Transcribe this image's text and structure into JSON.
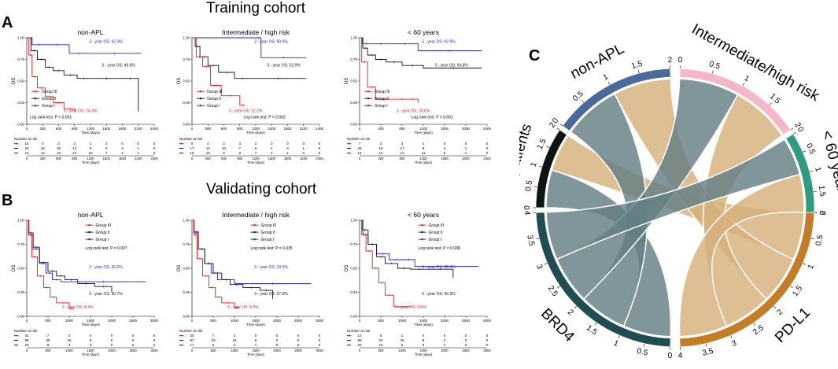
{
  "figure": {
    "cohorts": [
      "Training cohort",
      "Validating cohort"
    ],
    "panel_labels": [
      "A",
      "B",
      "C"
    ]
  },
  "chart_data": [
    {
      "type": "line",
      "id": "train-nonapl",
      "title": "non-APL",
      "xlabel": "Time (days)",
      "ylabel": "OS",
      "xlim": [
        0,
        2400
      ],
      "ylim": [
        0,
        1
      ],
      "xticks": [
        0,
        300,
        600,
        900,
        1200,
        1500,
        1800,
        2100,
        2400
      ],
      "yticks": [
        "0.00",
        "0.25",
        "0.50",
        "0.75",
        "1.00"
      ],
      "legend": [
        "Group III",
        "Group II",
        "Group I"
      ],
      "logrank": "Log rank test: P < 0.001",
      "series": [
        {
          "name": "Group I",
          "color": "#1e1ee6",
          "x": [
            0,
            100,
            350,
            800,
            1150,
            2150
          ],
          "y": [
            1,
            0.92,
            0.92,
            0.82,
            0.82,
            0.82
          ],
          "label": "3 - year OS: 92.3%"
        },
        {
          "name": "Group II",
          "color": "#111111",
          "x": [
            0,
            80,
            200,
            350,
            500,
            700,
            950,
            1200,
            1800,
            2100
          ],
          "y": [
            1,
            0.85,
            0.75,
            0.66,
            0.62,
            0.57,
            0.53,
            0.53,
            0.53,
            0.15
          ],
          "label": "3 - year OS: 49.8%"
        },
        {
          "name": "Group III",
          "color": "#e6191f",
          "x": [
            0,
            40,
            100,
            200,
            350,
            500,
            700,
            900
          ],
          "y": [
            1,
            0.8,
            0.55,
            0.42,
            0.32,
            0.25,
            0.18,
            0.15
          ],
          "label": "3 - year OS: 14.3%"
        }
      ],
      "risk": {
        "header": "Number at risk",
        "rows": [
          [
            "14",
            "4",
            "3",
            "3",
            "1",
            "0",
            "0",
            "0",
            "0"
          ],
          [
            "25",
            "18",
            "15",
            "12",
            "9",
            "6",
            "4",
            "1",
            "0"
          ],
          [
            "13",
            "13",
            "12",
            "12",
            "10",
            "7",
            "2",
            "1",
            "0"
          ]
        ]
      }
    },
    {
      "type": "line",
      "id": "train-int",
      "title": "Intermediate / high risk",
      "xlabel": "Time (days)",
      "ylabel": "OS",
      "xlim": [
        0,
        2400
      ],
      "ylim": [
        0,
        1
      ],
      "xticks": [
        0,
        300,
        600,
        900,
        1200,
        1500,
        1800,
        2100,
        2400
      ],
      "yticks": [
        "0.00",
        "0.25",
        "0.50",
        "0.75",
        "1.00"
      ],
      "legend": [
        "Group III",
        "Group II",
        "Group I"
      ],
      "logrank": "Log rank test: P = 0.002",
      "series": [
        {
          "name": "Group I",
          "color": "#1e1ee6",
          "x": [
            0,
            1200,
            1300,
            2150
          ],
          "y": [
            1,
            1,
            0.77,
            0.77
          ],
          "label": "3 - year OS: 90.0%"
        },
        {
          "name": "Group II",
          "color": "#111111",
          "x": [
            0,
            60,
            150,
            300,
            500,
            800,
            1100,
            2150
          ],
          "y": [
            1,
            0.9,
            0.78,
            0.68,
            0.6,
            0.53,
            0.53,
            0.53
          ],
          "label": "3 - year OS: 52.9%"
        },
        {
          "name": "Group III",
          "color": "#e6191f",
          "x": [
            0,
            80,
            200,
            350,
            550,
            900,
            1000
          ],
          "y": [
            1,
            0.78,
            0.67,
            0.45,
            0.33,
            0.22,
            0.22
          ],
          "label": "3 - year OS: 22.2%"
        }
      ],
      "risk": {
        "header": "Number at risk",
        "rows": [
          [
            "9",
            "4",
            "3",
            "3",
            "1",
            "0",
            "0",
            "0",
            "0"
          ],
          [
            "17",
            "13",
            "10",
            "7",
            "6",
            "4",
            "3",
            "1",
            "0"
          ],
          [
            "10",
            "10",
            "9",
            "9",
            "7",
            "4",
            "1",
            "0",
            "0"
          ]
        ]
      }
    },
    {
      "type": "line",
      "id": "train-60",
      "title": "< 60 years",
      "xlabel": "Time (days)",
      "ylabel": "OS",
      "xlim": [
        0,
        2400
      ],
      "ylim": [
        0,
        1
      ],
      "xticks": [
        0,
        400,
        800,
        1200,
        1600,
        2000,
        2400
      ],
      "yticks": [
        "0.00",
        "0.25",
        "0.50",
        "0.75",
        "1.00"
      ],
      "legend": [
        "Group III",
        "Group II",
        "Group I"
      ],
      "logrank": "Log rank test: P = 0.001",
      "series": [
        {
          "name": "Group I",
          "color": "#1e1ee6",
          "x": [
            0,
            50,
            200,
            600,
            1100,
            2300
          ],
          "y": [
            1,
            0.93,
            0.93,
            0.93,
            0.85,
            0.85
          ],
          "label": "3 - year OS: 92.9%"
        },
        {
          "name": "Group II",
          "color": "#111111",
          "x": [
            0,
            60,
            150,
            300,
            500,
            800,
            1200,
            2300
          ],
          "y": [
            1,
            0.88,
            0.8,
            0.75,
            0.72,
            0.68,
            0.65,
            0.65
          ],
          "label": "3 - year OS: 64.8%"
        },
        {
          "name": "Group III",
          "color": "#e6191f",
          "x": [
            0,
            40,
            150,
            300,
            700,
            900,
            1100
          ],
          "y": [
            1,
            0.72,
            0.43,
            0.29,
            0.29,
            0.29,
            0.25
          ],
          "label": "3 - year OS: 28.6%"
        }
      ],
      "risk": {
        "header": "Number at risk",
        "rows": [
          [
            "7",
            "3",
            "3",
            "1",
            "0",
            "0",
            "0"
          ],
          [
            "25",
            "19",
            "17",
            "8",
            "4",
            "1",
            "0"
          ],
          [
            "14",
            "14",
            "13",
            "11",
            "6",
            "1",
            "0"
          ]
        ]
      }
    },
    {
      "type": "line",
      "id": "valid-nonapl",
      "title": "non-APL",
      "xlabel": "Time (days)",
      "ylabel": "OS",
      "xlim": [
        0,
        3000
      ],
      "ylim": [
        0,
        1
      ],
      "xticks": [
        0,
        500,
        1000,
        1500,
        2000,
        2500,
        3000
      ],
      "yticks": [
        "0.00",
        "0.25",
        "0.50",
        "0.75",
        "1.00"
      ],
      "legend": [
        "Group III",
        "Group II",
        "Group I"
      ],
      "logrank": "Log rank test: P = 0.007",
      "series": [
        {
          "name": "Group I",
          "color": "#1e1ee6",
          "x": [
            0,
            50,
            150,
            300,
            450,
            600,
            800,
            2800
          ],
          "y": [
            1,
            0.85,
            0.7,
            0.55,
            0.45,
            0.38,
            0.36,
            0.36
          ],
          "label": "3 - year OS: 35.6%"
        },
        {
          "name": "Group II",
          "color": "#111111",
          "x": [
            0,
            50,
            150,
            300,
            500,
            700,
            900,
            1200,
            1600,
            2000
          ],
          "y": [
            1,
            0.87,
            0.72,
            0.56,
            0.47,
            0.42,
            0.38,
            0.34,
            0.31,
            0.25
          ],
          "label": "3 - year OS: 30.7%"
        },
        {
          "name": "Group III",
          "color": "#e6191f",
          "x": [
            0,
            40,
            120,
            250,
            400,
            550,
            700,
            1000,
            1100
          ],
          "y": [
            1,
            0.85,
            0.62,
            0.42,
            0.3,
            0.2,
            0.14,
            0.08,
            0.08
          ],
          "label": "3 - year OS: 8.4%"
        }
      ],
      "risk": {
        "header": "Number at risk",
        "rows": [
          [
            "31",
            "7",
            "2",
            "0",
            "0",
            "0",
            "0"
          ],
          [
            "88",
            "38",
            "16",
            "8",
            "2",
            "0",
            "0"
          ],
          [
            "20",
            "8",
            "3",
            "3",
            "0",
            "0",
            "0"
          ]
        ]
      }
    },
    {
      "type": "line",
      "id": "valid-int",
      "title": "Intermediate / high risk",
      "xlabel": "Time (days)",
      "ylabel": "OS",
      "xlim": [
        0,
        3000
      ],
      "ylim": [
        0,
        1
      ],
      "xticks": [
        0,
        500,
        1000,
        1500,
        2000,
        2500,
        3000
      ],
      "yticks": [
        "0.00",
        "0.25",
        "0.50",
        "0.75",
        "1.00"
      ],
      "legend": [
        "Group III",
        "Group II",
        "Group I"
      ],
      "logrank": "Log rank test: P = 0.035",
      "series": [
        {
          "name": "Group I",
          "color": "#1e1ee6",
          "x": [
            0,
            50,
            150,
            300,
            450,
            600,
            1000,
            2800
          ],
          "y": [
            1,
            0.88,
            0.7,
            0.55,
            0.45,
            0.38,
            0.34,
            0.34
          ],
          "label": "3 - year OS: 33.5%"
        },
        {
          "name": "Group II",
          "color": "#111111",
          "x": [
            0,
            50,
            150,
            300,
            500,
            700,
            900,
            1200,
            1600,
            1900
          ],
          "y": [
            1,
            0.87,
            0.7,
            0.55,
            0.45,
            0.38,
            0.33,
            0.3,
            0.27,
            0.18
          ],
          "label": "3 - year OS: 27.0%"
        },
        {
          "name": "Group III",
          "color": "#e6191f",
          "x": [
            0,
            40,
            120,
            250,
            400,
            550,
            700,
            1000,
            1100
          ],
          "y": [
            1,
            0.85,
            0.6,
            0.42,
            0.3,
            0.2,
            0.14,
            0.09,
            0.09
          ],
          "label": "3 - year OS: 8.9%"
        }
      ],
      "risk": {
        "header": "Number at risk",
        "rows": [
          [
            "30",
            "7",
            "2",
            "0",
            "0",
            "0",
            "0"
          ],
          [
            "87",
            "33",
            "15",
            "6",
            "2",
            "0",
            "0"
          ],
          [
            "17",
            "6",
            "2",
            "1",
            "0",
            "0",
            "0"
          ]
        ]
      }
    },
    {
      "type": "line",
      "id": "valid-60",
      "title": "< 60 years",
      "xlabel": "Time (days)",
      "ylabel": "OS",
      "xlim": [
        0,
        3000
      ],
      "ylim": [
        0,
        1
      ],
      "xticks": [
        0,
        500,
        1000,
        1500,
        2000,
        2500,
        3000
      ],
      "yticks": [
        "0.00",
        "0.25",
        "0.50",
        "0.75",
        "1.00"
      ],
      "legend": [
        "Group III",
        "Group II",
        "Group I"
      ],
      "logrank": "Log rank test: P = 0.038",
      "series": [
        {
          "name": "Group I",
          "color": "#1e1ee6",
          "x": [
            0,
            80,
            200,
            400,
            700,
            1000,
            1300,
            2800
          ],
          "y": [
            1,
            0.85,
            0.75,
            0.65,
            0.59,
            0.59,
            0.52,
            0.52
          ],
          "label": "3 - year OS: 59.4%"
        },
        {
          "name": "Group II",
          "color": "#111111",
          "x": [
            0,
            60,
            200,
            400,
            600,
            900,
            1200,
            1600,
            2200
          ],
          "y": [
            1,
            0.9,
            0.75,
            0.62,
            0.55,
            0.5,
            0.49,
            0.49,
            0.4
          ],
          "label": "3 - year OS: 49.3%"
        },
        {
          "name": "Group III",
          "color": "#e6191f",
          "x": [
            0,
            50,
            150,
            300,
            450,
            600,
            800,
            1200
          ],
          "y": [
            1,
            0.85,
            0.68,
            0.5,
            0.35,
            0.22,
            0.1,
            0.1
          ],
          "label": "3 - year OS: 9.5%"
        }
      ],
      "risk": {
        "header": "Number at risk",
        "rows": [
          [
            "12",
            "5",
            "1",
            "0",
            "0",
            "0",
            "0"
          ],
          [
            "55",
            "23",
            "15",
            "8",
            "2",
            "0",
            "0"
          ],
          [
            "20",
            "10",
            "6",
            "5",
            "1",
            "0",
            "0"
          ]
        ]
      }
    },
    {
      "type": "chord",
      "id": "chord",
      "sectors": [
        {
          "name": "non-APL",
          "color": "#4a6b99",
          "max": 2,
          "ticks": [
            "0",
            "0.5",
            "1",
            "1.5",
            "2"
          ]
        },
        {
          "name": "Intermediate/high risk",
          "color": "#f4b7c5",
          "max": 2,
          "ticks": [
            "0",
            "0.5",
            "1",
            "1.5",
            "2"
          ]
        },
        {
          "name": "< 60 years",
          "color": "#2f9c80",
          "max": 2,
          "ticks": [
            "0",
            "0.5",
            "1",
            "1.5",
            "2"
          ]
        },
        {
          "name": "PD-L1",
          "color": "#c47c26",
          "max": 4,
          "ticks": [
            "0",
            "0.5",
            "1",
            "1.5",
            "2",
            "2.5",
            "3",
            "3.5",
            "4"
          ]
        },
        {
          "name": "BRD4",
          "color": "#1f4d52",
          "max": 4,
          "ticks": [
            "0",
            "0.5",
            "1",
            "1.5",
            "2",
            "2.5",
            "3",
            "3.5",
            "4"
          ]
        },
        {
          "name": "All patients",
          "color": "#0c1414",
          "max": 2,
          "ticks": [
            "0",
            "0.5",
            "1",
            "1.5",
            "2"
          ]
        }
      ],
      "links": [
        {
          "from": "All patients",
          "to": "BRD4",
          "value": 1,
          "color": "#647f84"
        },
        {
          "from": "All patients",
          "to": "PD-L1",
          "value": 1,
          "color": "#d7b07b"
        },
        {
          "from": "non-APL",
          "to": "BRD4",
          "value": 1,
          "color": "#647f84"
        },
        {
          "from": "non-APL",
          "to": "PD-L1",
          "value": 1,
          "color": "#d7b07b"
        },
        {
          "from": "Intermediate/high risk",
          "to": "BRD4",
          "value": 1,
          "color": "#647f84"
        },
        {
          "from": "Intermediate/high risk",
          "to": "PD-L1",
          "value": 1,
          "color": "#d7b07b"
        },
        {
          "from": "< 60 years",
          "to": "BRD4",
          "value": 1,
          "color": "#647f84"
        },
        {
          "from": "< 60 years",
          "to": "PD-L1",
          "value": 1,
          "color": "#d7b07b"
        }
      ]
    }
  ]
}
